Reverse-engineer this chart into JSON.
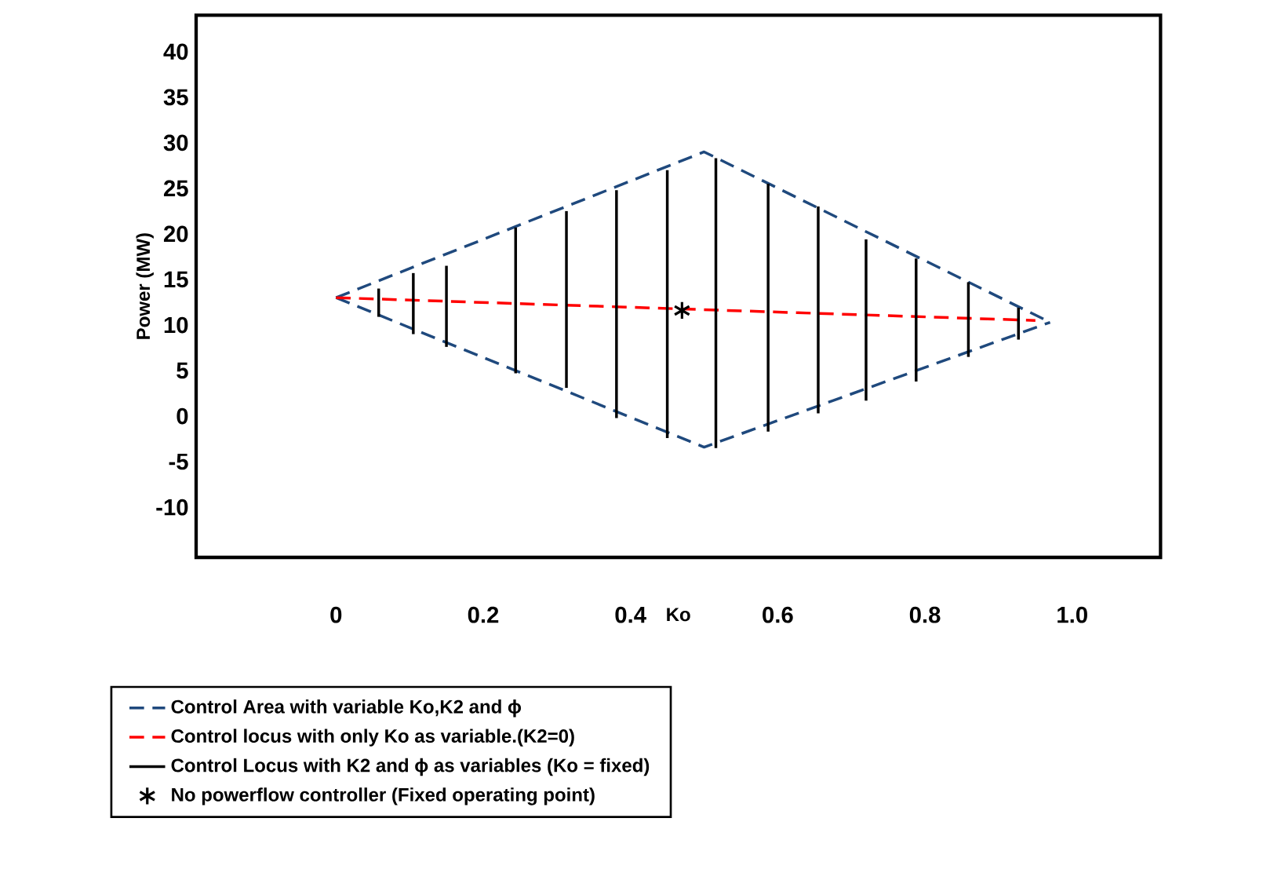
{
  "chart_data": {
    "type": "line",
    "xlabel": "Ko",
    "ylabel": "Power (MW)",
    "xlim": [
      -0.19,
      1.12
    ],
    "ylim": [
      -15.5,
      44
    ],
    "xticks": [
      0,
      0.2,
      0.4,
      0.6,
      0.8,
      {
        "value": 1,
        "label": "1.0"
      }
    ],
    "yticks": [
      -10,
      -5,
      0,
      5,
      10,
      15,
      20,
      25,
      30,
      35,
      40
    ],
    "legend": "bottom",
    "grid": false,
    "series": [
      {
        "name": "Control Area with variable Ko,K2 and ϕ",
        "color": "#1f497d",
        "line_style": "dashed",
        "x": [
          0,
          0.5,
          0.97
        ],
        "values": [
          13,
          29,
          10.3
        ]
      },
      {
        "color": "#1f497d",
        "line_style": "dashed",
        "x": [
          0,
          0.5,
          0.97
        ],
        "values": [
          13,
          -3.4,
          10.3
        ]
      },
      {
        "name": "Control locus with only Ko as variable.(K2=0)",
        "color": "#ff0000",
        "line_style": "dashed",
        "x": [
          0,
          0.95
        ],
        "values": [
          13,
          10.5
        ]
      },
      {
        "name": "Control Locus with K2 and ϕ as variables (Ko = fixed)",
        "color": "#000000",
        "line_style": "solid",
        "x": [
          0.058,
          0.058
        ],
        "values": [
          14,
          10.9
        ]
      },
      {
        "color": "#000000",
        "line_style": "solid",
        "x": [
          0.105,
          0.105
        ],
        "values": [
          15.7,
          9
        ]
      },
      {
        "color": "#000000",
        "line_style": "solid",
        "x": [
          0.15,
          0.15
        ],
        "values": [
          16.5,
          7.6
        ]
      },
      {
        "color": "#000000",
        "line_style": "solid",
        "x": [
          0.244,
          0.244
        ],
        "values": [
          20.7,
          4.7
        ]
      },
      {
        "color": "#000000",
        "line_style": "solid",
        "x": [
          0.313,
          0.313
        ],
        "values": [
          22.5,
          3.1
        ]
      },
      {
        "color": "#000000",
        "line_style": "solid",
        "x": [
          0.381,
          0.381
        ],
        "values": [
          24.8,
          -0.2
        ]
      },
      {
        "color": "#000000",
        "line_style": "solid",
        "x": [
          0.45,
          0.45
        ],
        "values": [
          27,
          -2.4
        ]
      },
      {
        "color": "#000000",
        "line_style": "solid",
        "x": [
          0.516,
          0.516
        ],
        "values": [
          28.3,
          -3.5
        ]
      },
      {
        "color": "#000000",
        "line_style": "solid",
        "x": [
          0.587,
          0.587
        ],
        "values": [
          25.5,
          -1.7
        ]
      },
      {
        "color": "#000000",
        "line_style": "solid",
        "x": [
          0.655,
          0.655
        ],
        "values": [
          23,
          0.3
        ]
      },
      {
        "color": "#000000",
        "line_style": "solid",
        "x": [
          0.72,
          0.72
        ],
        "values": [
          19.4,
          1.7
        ]
      },
      {
        "color": "#000000",
        "line_style": "solid",
        "x": [
          0.788,
          0.788
        ],
        "values": [
          17.3,
          3.8
        ]
      },
      {
        "color": "#000000",
        "line_style": "solid",
        "x": [
          0.859,
          0.859
        ],
        "values": [
          14.7,
          6.5
        ]
      },
      {
        "color": "#000000",
        "line_style": "solid",
        "x": [
          0.927,
          0.927
        ],
        "values": [
          11.9,
          8.4
        ]
      },
      {
        "name": "No powerflow controller (Fixed operating point)",
        "type": "scatter",
        "marker": "cross",
        "color": "#000000",
        "x": [
          0.47
        ],
        "values": [
          11.6
        ]
      }
    ]
  }
}
